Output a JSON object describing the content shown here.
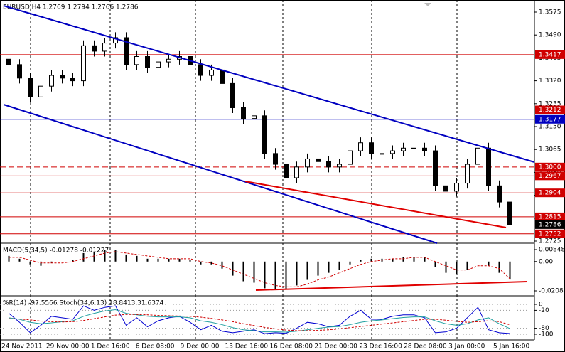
{
  "chart_data": [
    {
      "type": "candlestick",
      "title": "EURUSD,H4 1.2769 1.2794 1.2766 1.2786",
      "up_color": "#ffffff",
      "down_color": "#000000",
      "ylim": [
        1.2725,
        1.3575
      ],
      "yticks": [
        1.3575,
        {
          "value": 1.349,
          "label": "1.3490"
        },
        {
          "value": 1.3405,
          "label": "1.3405"
        },
        {
          "value": 1.332,
          "label": "1.3320"
        },
        1.3235,
        {
          "value": 1.315,
          "label": "1.3150"
        },
        1.3065,
        {
          "value": 1.298,
          "label": "1.2980"
        },
        1.2895,
        {
          "value": 1.281,
          "label": "1.2810"
        },
        1.2725
      ],
      "levels": [
        {
          "value": 1.3417,
          "label": "1.3417",
          "color": "#d00000",
          "dashed": false
        },
        {
          "value": 1.3212,
          "label": "1.3212",
          "color": "#d00000",
          "dashed": true
        },
        {
          "value": 1.3177,
          "label": "1.3177",
          "color": "#0000c0",
          "dashed": false
        },
        {
          "value": 1.3,
          "label": "1.3000",
          "color": "#d00000",
          "dashed": true
        },
        {
          "value": 1.2967,
          "label": "1.2967",
          "color": "#d00000",
          "dashed": false
        },
        {
          "value": 1.2904,
          "label": "1.2904",
          "color": "#d00000",
          "dashed": false
        },
        {
          "value": 1.2815,
          "label": "1.2815",
          "color": "#d00000",
          "dashed": false
        },
        {
          "value": 1.2786,
          "label": "1.2786",
          "color": "#000000",
          "dashed": false
        },
        {
          "value": 1.2752,
          "label": "1.2752",
          "color": "#d00000",
          "dashed": false
        }
      ],
      "time_labels": [
        "24 Nov 2011",
        "29 Nov 00:00",
        "1 Dec 16:00",
        "6 Dec 08:00",
        "9 Dec 00:00",
        "13 Dec 16:00",
        "16 Dec 08:00",
        "21 Dec 00:00",
        "23 Dec 16:00",
        "28 Dec 08:00",
        "3 Jan 00:00",
        "5 Jan 16:00"
      ],
      "open": [
        1.34,
        1.338,
        1.333,
        1.326,
        1.33,
        1.334,
        1.333,
        1.332,
        1.345,
        1.343,
        1.346,
        1.348,
        1.338,
        1.341,
        1.337,
        1.339,
        1.34,
        1.341,
        1.338,
        1.334,
        1.336,
        1.331,
        1.322,
        1.318,
        1.319,
        1.305,
        1.301,
        1.296,
        1.3,
        1.303,
        1.302,
        1.3,
        1.301,
        1.306,
        1.309,
        1.305,
        1.305,
        1.306,
        1.307,
        1.307,
        1.306,
        1.293,
        1.291,
        1.294,
        1.301,
        1.307,
        1.293,
        1.287
      ],
      "high": [
        1.342,
        1.34,
        1.335,
        1.332,
        1.336,
        1.336,
        1.335,
        1.347,
        1.347,
        1.348,
        1.35,
        1.35,
        1.343,
        1.343,
        1.341,
        1.342,
        1.343,
        1.343,
        1.34,
        1.338,
        1.338,
        1.333,
        1.324,
        1.321,
        1.321,
        1.307,
        1.303,
        1.302,
        1.305,
        1.305,
        1.304,
        1.303,
        1.308,
        1.311,
        1.311,
        1.307,
        1.308,
        1.309,
        1.309,
        1.309,
        1.308,
        1.295,
        1.296,
        1.303,
        1.309,
        1.309,
        1.295,
        1.289
      ],
      "low": [
        1.336,
        1.331,
        1.324,
        1.324,
        1.328,
        1.331,
        1.33,
        1.33,
        1.341,
        1.341,
        1.344,
        1.336,
        1.336,
        1.335,
        1.335,
        1.337,
        1.338,
        1.336,
        1.332,
        1.332,
        1.329,
        1.32,
        1.316,
        1.316,
        1.303,
        1.299,
        1.294,
        1.294,
        1.298,
        1.3,
        1.298,
        1.298,
        1.299,
        1.304,
        1.303,
        1.303,
        1.303,
        1.304,
        1.305,
        1.304,
        1.291,
        1.289,
        1.289,
        1.292,
        1.299,
        1.291,
        1.285,
        1.2766
      ],
      "close": [
        1.338,
        1.333,
        1.326,
        1.33,
        1.334,
        1.333,
        1.332,
        1.345,
        1.343,
        1.346,
        1.348,
        1.338,
        1.341,
        1.337,
        1.339,
        1.34,
        1.341,
        1.338,
        1.334,
        1.336,
        1.331,
        1.322,
        1.318,
        1.319,
        1.305,
        1.301,
        1.296,
        1.3,
        1.303,
        1.302,
        1.3,
        1.301,
        1.306,
        1.309,
        1.305,
        1.305,
        1.306,
        1.307,
        1.307,
        1.306,
        1.293,
        1.291,
        1.294,
        1.301,
        1.307,
        1.293,
        1.287,
        1.2786
      ]
    },
    {
      "type": "macd",
      "title": "MACD(5,34,5) -0.01278 -0.01227",
      "ylim": [
        -0.02081,
        0.00848
      ],
      "yticks": [
        0.00848,
        {
          "value": 0,
          "label": "0.00"
        },
        -0.02081
      ],
      "series": [
        {
          "name": "MACD",
          "color": "#000000",
          "values": [
            0.004,
            0.002,
            -0.002,
            -0.003,
            -0.001,
            0,
            0.001,
            0.006,
            0.007,
            0.008,
            0.008,
            0.005,
            0.004,
            0.002,
            0.002,
            0.002,
            0.002,
            0.001,
            -0.002,
            -0.002,
            -0.005,
            -0.01,
            -0.014,
            -0.015,
            -0.019,
            -0.02,
            -0.02,
            -0.017,
            -0.013,
            -0.01,
            -0.008,
            -0.006,
            -0.002,
            0.001,
            0.002,
            0.002,
            0.002,
            0.003,
            0.003,
            0.003,
            -0.004,
            -0.008,
            -0.009,
            -0.006,
            0,
            -0.003,
            -0.008,
            -0.01278
          ]
        },
        {
          "name": "Signal",
          "color": "#d00000",
          "values": [
            0.003,
            0.003,
            0.001,
            -0.001,
            -0.001,
            -0.001,
            0,
            0.002,
            0.004,
            0.006,
            0.007,
            0.006,
            0.005,
            0.004,
            0.003,
            0.002,
            0.002,
            0.002,
            0,
            -0.001,
            -0.003,
            -0.006,
            -0.009,
            -0.012,
            -0.015,
            -0.017,
            -0.018,
            -0.018,
            -0.016,
            -0.013,
            -0.011,
            -0.008,
            -0.005,
            -0.002,
            0,
            0.001,
            0.002,
            0.002,
            0.003,
            0.003,
            0,
            -0.003,
            -0.006,
            -0.006,
            -0.003,
            -0.003,
            -0.005,
            -0.01227
          ]
        }
      ]
    },
    {
      "type": "oscillator",
      "title": "%R(14) -97.5566 Stoch(34,6,13) 18.8413 31.6374",
      "ylim": [
        -100,
        0
      ],
      "yticks": [
        0,
        -20,
        -80,
        -100
      ],
      "y2lim": [
        0,
        100
      ],
      "series": [
        {
          "name": "%R",
          "color": "#0000d0",
          "values": [
            -30,
            -60,
            -95,
            -70,
            -40,
            -45,
            -50,
            -5,
            -20,
            -10,
            -5,
            -70,
            -45,
            -75,
            -55,
            -45,
            -40,
            -60,
            -85,
            -70,
            -90,
            -95,
            -90,
            -85,
            -98,
            -95,
            -97,
            -80,
            -60,
            -65,
            -75,
            -70,
            -40,
            -20,
            -50,
            -50,
            -40,
            -35,
            -35,
            -45,
            -95,
            -92,
            -80,
            -45,
            -10,
            -85,
            -95,
            -97.5566
          ]
        },
        {
          "name": "Stoch",
          "color": "#20a0a0",
          "axis": "y2",
          "values": [
            55,
            50,
            40,
            35,
            38,
            42,
            45,
            60,
            70,
            78,
            82,
            70,
            65,
            60,
            58,
            58,
            58,
            55,
            45,
            40,
            32,
            22,
            15,
            12,
            8,
            8,
            7,
            10,
            15,
            20,
            24,
            26,
            32,
            40,
            45,
            48,
            52,
            56,
            58,
            58,
            45,
            35,
            30,
            35,
            48,
            55,
            35,
            18.8413
          ]
        },
        {
          "name": "Signal",
          "color": "#d00000",
          "axis": "y2",
          "dashed": true,
          "values": [
            52,
            51,
            48,
            44,
            42,
            41,
            42,
            46,
            52,
            58,
            64,
            66,
            66,
            65,
            63,
            62,
            61,
            60,
            57,
            53,
            48,
            42,
            35,
            29,
            23,
            18,
            14,
            12,
            12,
            13,
            15,
            18,
            22,
            26,
            30,
            34,
            38,
            42,
            46,
            50,
            50,
            47,
            43,
            40,
            42,
            45,
            42,
            31.6374
          ]
        }
      ]
    }
  ]
}
